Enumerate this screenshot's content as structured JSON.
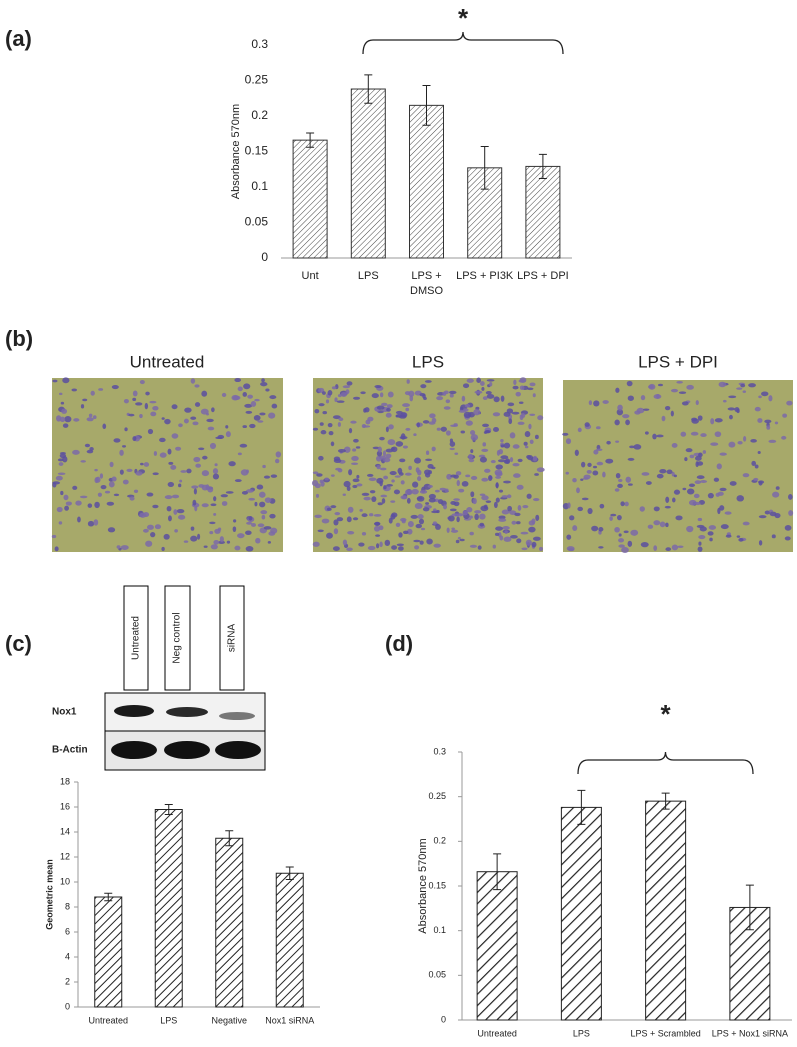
{
  "chart_data": [
    {
      "type": "bar",
      "panel_label": "(a)",
      "annotation": "*",
      "ylabel": "Absorbance 570nm",
      "categories": [
        "Unt",
        "LPS",
        "LPS + DMSO",
        "LPS + PI3K",
        "LPS + DPI"
      ],
      "values": [
        0.166,
        0.238,
        0.215,
        0.127,
        0.129
      ],
      "errors": [
        0.01,
        0.02,
        0.028,
        0.03,
        0.017
      ],
      "ylim": [
        0,
        0.3
      ],
      "yticks": [
        0,
        0.05,
        0.1,
        0.15,
        0.2,
        0.25,
        0.3
      ],
      "color": "#333333"
    },
    {
      "type": "bar",
      "ylabel": "Geometric mean",
      "categories": [
        "Untreated",
        "LPS",
        "Negative",
        "Nox1 siRNA"
      ],
      "values": [
        8.8,
        15.8,
        13.5,
        10.7
      ],
      "errors": [
        0.3,
        0.4,
        0.6,
        0.5
      ],
      "ylim": [
        0,
        18
      ],
      "yticks": [
        0,
        2,
        4,
        6,
        8,
        10,
        12,
        14,
        16,
        18
      ],
      "color": "#222222"
    },
    {
      "type": "bar",
      "panel_label": "(d)",
      "annotation": "*",
      "ylabel": "Absorbance 570nm",
      "categories": [
        "Untreated",
        "LPS",
        "LPS + Scrambled",
        "LPS + Nox1 siRNA"
      ],
      "values": [
        0.166,
        0.238,
        0.245,
        0.126
      ],
      "errors": [
        0.02,
        0.019,
        0.009,
        0.025
      ],
      "ylim": [
        0,
        0.3
      ],
      "yticks": [
        0,
        0.05,
        0.1,
        0.15,
        0.2,
        0.25,
        0.3
      ],
      "color": "#222222"
    }
  ],
  "images": {
    "panel_label": "(b)",
    "labels": [
      "Untreated",
      "LPS",
      "LPS + DPI"
    ]
  },
  "blot": {
    "panel_label": "(c)",
    "lanes": [
      "Untreated",
      "Neg control",
      "siRNA"
    ],
    "rows": [
      "Nox1",
      "B-Actin"
    ]
  }
}
